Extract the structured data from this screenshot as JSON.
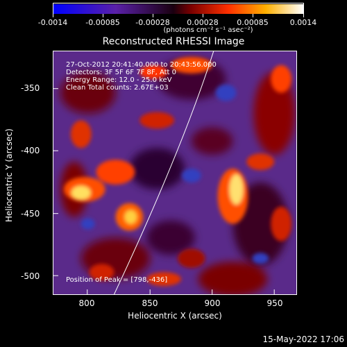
{
  "colorbar": {
    "ticks": [
      "-0.0014",
      "-0.00085",
      "-0.00028",
      "0.00028",
      "0.00085",
      "0.0014"
    ],
    "unit": "(photons cm⁻² s⁻¹ asec⁻²)",
    "colors": [
      "#0000ff",
      "#4a1a8a",
      "#000000",
      "#8a0000",
      "#ff4000",
      "#ffd000",
      "#ffffff"
    ]
  },
  "title": "Reconstructed RHESSI Image",
  "info": {
    "line1": "27-Oct-2012 20:41:40.000 to 20:43:56.000",
    "line2": "Detectors: 3F 5F 6F 7F 8F, Att 0",
    "line3": "Energy Range: 12.0 - 25.0 keV",
    "line4": "Clean    Total counts: 2.67E+03",
    "peak": "Position of Peak = [798,-436]"
  },
  "axes": {
    "xlabel": "Heliocentric X (arcsec)",
    "ylabel": "Heliocentric Y (arcsec)",
    "xticks": [
      "800",
      "850",
      "900",
      "950"
    ],
    "yticks": [
      "-350",
      "-400",
      "-450",
      "-500"
    ],
    "xlim": [
      780,
      975
    ],
    "ylim": [
      -515,
      -320
    ]
  },
  "timestamp": "15-May-2022 17:06"
}
